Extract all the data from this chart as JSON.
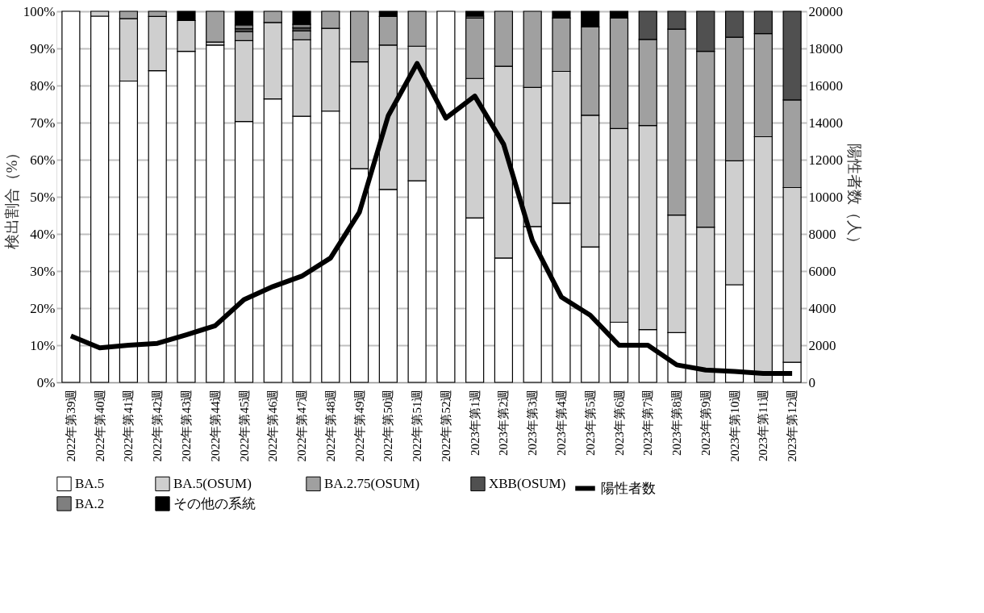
{
  "chart_data": {
    "type": "bar",
    "stacked": true,
    "ylabel": "検出割合（%）",
    "y2label": "陽性者数（人）",
    "categories": [
      "2022年第39週",
      "2022年第40週",
      "2022年第41週",
      "2022年第42週",
      "2022年第43週",
      "2022年第44週",
      "2022年第45週",
      "2022年第46週",
      "2022年第47週",
      "2022年第48週",
      "2022年第49週",
      "2022年第50週",
      "2022年第51週",
      "2022年第52週",
      "2023年第1週",
      "2023年第2週",
      "2023年第3週",
      "2023年第4週",
      "2023年第5週",
      "2023年第6週",
      "2023年第7週",
      "2023年第8週",
      "2023年第9週",
      "2023年第10週",
      "2023年第11週",
      "2023年第12週"
    ],
    "ylim": [
      0,
      100
    ],
    "yticks": [
      {
        "value": 0,
        "label": "0%"
      },
      {
        "value": 10,
        "label": "10%"
      },
      {
        "value": 20,
        "label": "20%"
      },
      {
        "value": 30,
        "label": "30%"
      },
      {
        "value": 40,
        "label": "40%"
      },
      {
        "value": 50,
        "label": "50%"
      },
      {
        "value": 60,
        "label": "60%"
      },
      {
        "value": 70,
        "label": "70%"
      },
      {
        "value": 80,
        "label": "80%"
      },
      {
        "value": 90,
        "label": "90%"
      },
      {
        "value": 100,
        "label": "100%"
      }
    ],
    "y2lim": [
      0,
      20000
    ],
    "y2ticks": [
      0,
      2000,
      4000,
      6000,
      8000,
      10000,
      12000,
      14000,
      16000,
      18000,
      20000
    ],
    "grid": "y",
    "legend": "bottom",
    "series": [
      {
        "name": "BA.5",
        "color": "#ffffff",
        "values": [
          100,
          98.7,
          81.2,
          84.0,
          89.2,
          90.9,
          70.3,
          76.4,
          71.7,
          73.1,
          57.6,
          52.0,
          54.3,
          100,
          44.3,
          33.5,
          42.0,
          48.3,
          36.5,
          16.2,
          14.2,
          13.4,
          0,
          26.3,
          0,
          5.4
        ]
      },
      {
        "name": "BA.5(OSUM)",
        "color": "#cfcfcf",
        "values": [
          0,
          1.3,
          16.8,
          14.6,
          8.3,
          0.8,
          21.8,
          20.6,
          20.6,
          22.3,
          28.8,
          38.9,
          36.3,
          0,
          37.6,
          51.7,
          37.5,
          35.5,
          35.5,
          52.2,
          55.0,
          31.7,
          41.8,
          33.4,
          66.2,
          47.1
        ]
      },
      {
        "name": "BA.2.75(OSUM)",
        "color": "#a0a0a0",
        "values": [
          0,
          0,
          2.0,
          1.4,
          0,
          8.3,
          2.4,
          3.0,
          2.4,
          4.6,
          13.6,
          7.7,
          9.4,
          0,
          16.3,
          14.8,
          20.5,
          14.4,
          23.8,
          29.8,
          23.2,
          50.1,
          47.4,
          33.3,
          27.8,
          23.6
        ]
      },
      {
        "name": "XBB(OSUM)",
        "color": "#505050",
        "values": [
          0,
          0,
          0,
          0,
          0,
          0,
          0.8,
          0,
          0.8,
          0,
          0,
          0,
          0,
          0,
          0,
          0,
          0,
          0,
          0,
          0,
          7.6,
          4.8,
          10.8,
          7.0,
          6.0,
          23.9
        ]
      },
      {
        "name": "BA.2",
        "color": "#7f7f7f",
        "values": [
          0,
          0,
          0,
          0,
          0,
          0,
          1.0,
          0,
          1.0,
          0,
          0,
          0,
          0,
          0,
          0.5,
          0,
          0,
          0,
          0,
          0,
          0,
          0,
          0,
          0,
          0,
          0
        ]
      },
      {
        "name": "その他の系統",
        "color": "#000000",
        "values": [
          0,
          0,
          0,
          0,
          2.5,
          0,
          3.7,
          0,
          3.5,
          0,
          0,
          1.4,
          0,
          0,
          1.3,
          0,
          0,
          1.8,
          4.2,
          1.8,
          0,
          0,
          0,
          0,
          0,
          0
        ]
      },
      {
        "name": "陽性者数",
        "type": "line",
        "axis": "y2",
        "color": "#000000",
        "values": [
          2500,
          1860,
          2000,
          2100,
          2560,
          3050,
          4460,
          5160,
          5720,
          6700,
          9170,
          14370,
          17190,
          14240,
          15430,
          12830,
          7620,
          4600,
          3620,
          2000,
          2000,
          940,
          660,
          590,
          480,
          480
        ]
      }
    ]
  }
}
